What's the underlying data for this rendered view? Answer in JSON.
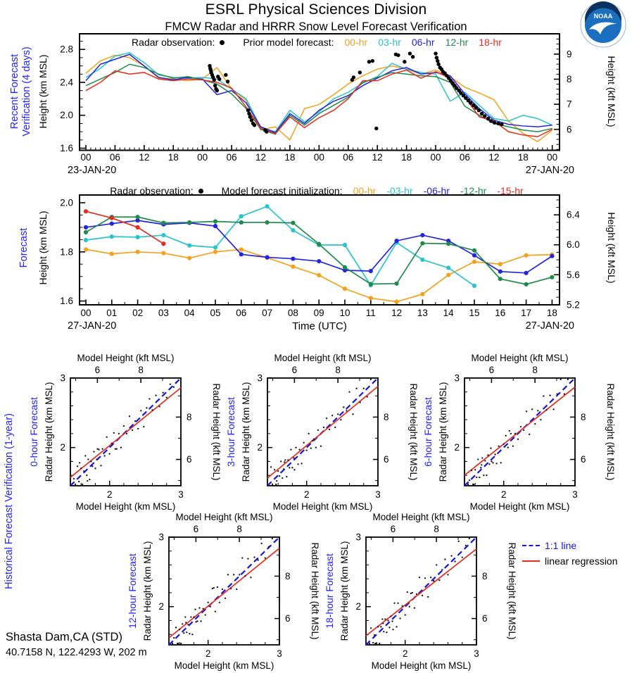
{
  "header": {
    "title": "ESRL Physical Sciences Division",
    "subtitle": "FMCW Radar and HRRR Snow Level Forecast Verification"
  },
  "noaa_logo": {
    "text": "NOAA"
  },
  "station": {
    "name": "Shasta Dam,CA (STD)",
    "coords": "40.7158 N, 122.4293 W, 202 m"
  },
  "legends": {
    "top": {
      "obs_label": "Radar observation:",
      "fc_label": "Prior model forecast:"
    },
    "mid": {
      "obs_label": "Radar observation:",
      "fc_label": "Model forecast initialization:"
    }
  },
  "scatter_common": {
    "section_label": "Historical Forecast Verification (1-year)",
    "top_axis_label": "Model Height (kft MSL)",
    "bottom_axis_label": "Model Height (km MSL)",
    "left_axis_label": "Radar Height (km MSL)",
    "right_axis_label": "Radar Height (kft MSL)",
    "km_ticks": [
      "2",
      "3"
    ],
    "kft_ticks": [
      "6",
      "8"
    ],
    "lim": [
      1.45,
      3.0
    ],
    "legend": [
      {
        "label": "1:1 line",
        "color": "#1414e0",
        "style": "dashed"
      },
      {
        "label": "linear regression",
        "color": "#e52a1e",
        "style": "solid"
      }
    ]
  },
  "chart_data": [
    {
      "id": "recent-verification",
      "type": "line",
      "section_label_1": "Recent Forecast",
      "section_label_2": "Verification (4 days)",
      "ylabel_left": "Height (km MSL)",
      "ylabel_right": "Height (kft MSL)",
      "x_date_left": "23-JAN-20",
      "x_date_right": "27-JAN-20",
      "x_labels": [
        "00",
        "06",
        "12",
        "18",
        "00",
        "06",
        "12",
        "18",
        "00",
        "06",
        "12",
        "18",
        "00",
        "06",
        "12",
        "18",
        "00"
      ],
      "y_ticks_left": [
        "1.6",
        "2.0",
        "2.4",
        "2.8"
      ],
      "y_ticks_right": [
        "6",
        "7",
        "8",
        "9"
      ],
      "xlim_hours": [
        0,
        96
      ],
      "ylim_km": [
        1.574,
        2.99
      ],
      "series": [
        {
          "label": "00-hr",
          "color": "#f5a11b",
          "step": 3,
          "values": [
            2.51,
            2.66,
            2.73,
            2.7,
            2.6,
            2.45,
            2.44,
            2.42,
            2.44,
            2.58,
            2.32,
            2.18,
            1.82,
            1.86,
            1.7,
            2.08,
            2.13,
            2.25,
            2.38,
            2.48,
            2.56,
            2.6,
            2.56,
            2.5,
            2.55,
            2.47,
            2.34,
            2.27,
            2.19,
            1.93,
            1.78,
            1.68,
            1.82
          ]
        },
        {
          "label": "03-hr",
          "color": "#27c3ce",
          "step": 3,
          "values": [
            2.46,
            2.57,
            2.72,
            2.76,
            2.64,
            2.49,
            2.46,
            2.45,
            2.46,
            2.44,
            2.32,
            2.2,
            1.85,
            1.8,
            2.06,
            1.92,
            2.04,
            2.2,
            2.28,
            2.39,
            2.47,
            2.63,
            2.56,
            2.52,
            2.5,
            2.17,
            2.28,
            2.12,
            1.96,
            1.93,
            2.0,
            1.96,
            1.88
          ]
        },
        {
          "label": "06-hr",
          "color": "#2323e0",
          "step": 3,
          "values": [
            2.42,
            2.62,
            2.68,
            2.74,
            2.6,
            2.46,
            2.43,
            2.46,
            2.44,
            2.25,
            2.3,
            2.15,
            1.86,
            1.79,
            2.02,
            1.9,
            2.06,
            2.17,
            2.24,
            2.36,
            2.45,
            2.54,
            2.58,
            2.5,
            2.52,
            2.48,
            2.26,
            2.08,
            1.94,
            1.89,
            1.87,
            1.86,
            1.88
          ]
        },
        {
          "label": "12-hr",
          "color": "#1f8a4c",
          "step": 3,
          "values": [
            2.36,
            2.44,
            2.52,
            2.62,
            2.58,
            2.5,
            2.45,
            2.47,
            2.43,
            2.38,
            2.26,
            2.08,
            1.83,
            1.77,
            2.0,
            1.88,
            2.02,
            2.12,
            2.22,
            2.4,
            2.46,
            2.52,
            2.5,
            2.48,
            2.47,
            2.4,
            2.11,
            2.0,
            1.9,
            1.86,
            1.82,
            1.8,
            1.84
          ]
        },
        {
          "label": "18-hr",
          "color": "#e52a1e",
          "step": 3,
          "values": [
            2.3,
            2.4,
            2.54,
            2.5,
            2.52,
            2.44,
            2.42,
            2.44,
            2.43,
            2.4,
            2.33,
            2.1,
            1.84,
            1.78,
            1.98,
            1.85,
            1.97,
            2.06,
            2.2,
            2.42,
            2.42,
            2.5,
            2.55,
            2.45,
            2.53,
            2.45,
            2.22,
            1.98,
            1.93,
            1.8,
            1.76,
            1.74,
            1.83
          ]
        }
      ],
      "observations": [
        25.5,
        2.6,
        25.6,
        2.57,
        25.7,
        2.55,
        25.8,
        2.52,
        26.0,
        2.49,
        26.2,
        2.46,
        26.4,
        2.43,
        26.6,
        2.36,
        26.8,
        2.32,
        27.0,
        2.3,
        27.2,
        2.47,
        27.5,
        2.44,
        28.8,
        2.49,
        29.2,
        2.41,
        33.4,
        2.06,
        33.6,
        2.02,
        33.8,
        1.98,
        34.1,
        1.94,
        34.4,
        1.9,
        34.7,
        1.88,
        36.9,
        1.82,
        37.2,
        1.8,
        54.8,
        2.43,
        55.1,
        2.46,
        56.4,
        2.52,
        58.3,
        2.65,
        59.0,
        2.66,
        59.8,
        1.84,
        63.8,
        2.74,
        64.3,
        2.73,
        65.6,
        2.65,
        66.7,
        2.75,
        67.3,
        2.71,
        72.0,
        2.75,
        72.2,
        2.7,
        72.4,
        2.66,
        72.6,
        2.62,
        72.9,
        2.58,
        73.2,
        2.56,
        73.5,
        2.53,
        73.9,
        2.51,
        74.3,
        2.48,
        74.7,
        2.45,
        75.1,
        2.42,
        75.5,
        2.39,
        75.9,
        2.36,
        76.3,
        2.33,
        76.8,
        2.3,
        77.2,
        2.27,
        77.7,
        2.24,
        78.2,
        2.21,
        78.7,
        2.18,
        79.2,
        2.15,
        79.8,
        2.12,
        80.3,
        2.09,
        80.9,
        2.06,
        81.5,
        2.02,
        82.1,
        1.99,
        82.8,
        1.96,
        83.4,
        1.93,
        84.1,
        1.91,
        84.9,
        1.9,
        85.6,
        1.89
      ]
    },
    {
      "id": "forecast",
      "type": "line",
      "section_label_1": "Forecast",
      "ylabel_left": "Height (km MSL)",
      "ylabel_right": "Height (kft MSL)",
      "xlabel": "Time (UTC)",
      "x_date_left": "27-JAN-20",
      "x_date_right": "27-JAN-20",
      "x_labels": [
        "00",
        "01",
        "02",
        "03",
        "04",
        "05",
        "06",
        "07",
        "08",
        "09",
        "10",
        "11",
        "12",
        "13",
        "14",
        "15",
        "16",
        "17",
        "18"
      ],
      "y_ticks_left": [
        "1.6",
        "1.8",
        "2.0"
      ],
      "y_ticks_right": [
        "5.2",
        "5.6",
        "6.0",
        "6.4"
      ],
      "xlim_hours": [
        0,
        18
      ],
      "ylim_km": [
        1.585,
        2.032
      ],
      "series": [
        {
          "label": "00-hr",
          "color": "#f5a11b",
          "step": 1,
          "values": [
            1.81,
            1.792,
            1.8,
            1.795,
            1.775,
            1.8,
            1.81,
            1.776,
            1.74,
            1.705,
            1.65,
            1.612,
            1.597,
            1.628,
            1.706,
            1.76,
            1.75,
            1.786,
            1.789
          ]
        },
        {
          "label": "-03-hr",
          "color": "#27c3ce",
          "step": 1,
          "values": [
            1.848,
            1.862,
            1.86,
            1.868,
            1.826,
            1.818,
            1.945,
            1.985,
            1.888,
            1.828,
            1.828,
            1.664,
            1.838,
            1.768,
            1.735,
            1.662
          ]
        },
        {
          "label": "-06-hr",
          "color": "#2323e0",
          "step": 1,
          "values": [
            1.9,
            1.915,
            1.928,
            1.912,
            1.918,
            1.905,
            1.79,
            1.778,
            1.772,
            1.762,
            1.725,
            1.722,
            1.845,
            1.868,
            1.845,
            1.786,
            1.72,
            1.714,
            1.783
          ]
        },
        {
          "label": "-12-hr",
          "color": "#1f8a4c",
          "step": 1,
          "values": [
            1.88,
            1.942,
            1.942,
            1.918,
            1.92,
            1.924,
            1.92,
            1.92,
            1.918,
            1.832,
            1.737,
            1.669,
            1.671,
            1.835,
            1.833,
            1.806,
            1.69,
            1.668,
            1.697
          ]
        },
        {
          "label": "-15-hr",
          "color": "#e52a1e",
          "step": 1,
          "values": [
            1.965,
            1.938,
            1.9,
            1.833
          ]
        }
      ],
      "observations": []
    },
    {
      "id": "scatter-0h",
      "type": "scatter",
      "title": "0-hour Forecast",
      "regression": [
        1.45,
        1.57,
        3.0,
        2.86
      ],
      "points": [
        1.5,
        1.55,
        1.52,
        1.47,
        1.55,
        1.73,
        1.57,
        1.51,
        1.6,
        1.7,
        1.62,
        1.47,
        1.64,
        1.66,
        1.66,
        1.88,
        1.68,
        1.6,
        1.7,
        1.83,
        1.72,
        1.54,
        1.74,
        1.8,
        1.76,
        1.73,
        1.78,
        1.94,
        1.8,
        1.7,
        1.82,
        1.83,
        1.85,
        1.97,
        1.88,
        1.74,
        1.9,
        1.98,
        1.93,
        1.88,
        1.96,
        2.15,
        2.0,
        1.91,
        2.03,
        2.06,
        2.06,
        2.21,
        2.1,
        1.98,
        2.13,
        2.2,
        2.16,
        2.0,
        2.2,
        2.31,
        2.24,
        2.2,
        2.28,
        2.45,
        2.32,
        2.25,
        2.36,
        2.38,
        2.4,
        2.27,
        2.44,
        2.53,
        2.48,
        2.3,
        2.52,
        2.57,
        2.56,
        2.7,
        2.6,
        2.54,
        2.65,
        2.75,
        2.7,
        2.59,
        2.75,
        2.79,
        2.8,
        2.72,
        2.85,
        2.91,
        2.9,
        2.87,
        1.58,
        1.78,
        1.69,
        1.52,
        1.83,
        1.98,
        2.08,
        1.98
      ]
    },
    {
      "id": "scatter-3h",
      "type": "scatter",
      "title": "3-hour Forecast",
      "regression": [
        1.45,
        1.56,
        3.0,
        2.88
      ],
      "points": [
        1.5,
        1.72,
        1.52,
        1.47,
        1.55,
        1.68,
        1.57,
        1.47,
        1.6,
        1.66,
        1.62,
        1.59,
        1.64,
        1.8,
        1.66,
        1.56,
        1.68,
        1.69,
        1.7,
        1.82,
        1.72,
        1.58,
        1.74,
        1.82,
        1.76,
        1.71,
        1.78,
        1.97,
        1.8,
        1.71,
        1.82,
        1.85,
        1.85,
        2.0,
        1.88,
        1.76,
        1.9,
        1.97,
        1.93,
        1.77,
        1.96,
        2.07,
        2.0,
        1.96,
        2.03,
        2.2,
        2.06,
        1.99,
        2.1,
        2.12,
        2.13,
        2.0,
        2.16,
        2.25,
        2.2,
        2.02,
        2.24,
        2.29,
        2.28,
        2.42,
        2.32,
        2.26,
        2.36,
        2.46,
        2.4,
        2.29,
        2.44,
        2.48,
        2.48,
        2.4,
        2.52,
        2.58,
        2.56,
        2.53,
        2.6,
        2.8,
        2.65,
        2.48,
        2.7,
        2.85,
        2.75,
        2.65,
        2.8,
        2.85,
        2.85,
        2.73,
        2.9,
        2.98,
        1.58,
        1.52,
        1.69,
        1.79,
        1.83,
        1.68,
        2.08,
        2.1
      ]
    },
    {
      "id": "scatter-6h",
      "type": "scatter",
      "title": "6-hour Forecast",
      "regression": [
        1.45,
        1.6,
        3.0,
        2.87
      ],
      "points": [
        1.5,
        1.47,
        1.52,
        1.53,
        1.55,
        1.67,
        1.57,
        1.47,
        1.6,
        1.68,
        1.62,
        1.57,
        1.64,
        1.83,
        1.66,
        1.57,
        1.68,
        1.71,
        1.7,
        1.85,
        1.72,
        1.6,
        1.74,
        1.81,
        1.76,
        1.6,
        1.78,
        1.89,
        1.8,
        1.76,
        1.82,
        1.99,
        1.85,
        1.78,
        1.88,
        1.9,
        1.9,
        1.77,
        1.93,
        2.02,
        1.96,
        1.78,
        2.0,
        2.05,
        2.03,
        2.17,
        2.06,
        2.0,
        2.1,
        2.2,
        2.13,
        2.02,
        2.16,
        2.2,
        2.2,
        2.12,
        2.24,
        2.3,
        2.28,
        2.25,
        2.32,
        2.52,
        2.36,
        2.19,
        2.4,
        2.55,
        2.44,
        2.34,
        2.48,
        2.53,
        2.52,
        2.4,
        2.56,
        2.74,
        2.6,
        2.54,
        2.65,
        2.75,
        2.7,
        2.55,
        2.75,
        2.77,
        2.8,
        2.98,
        2.85,
        2.77,
        2.9,
        2.98,
        1.58,
        1.47,
        1.69,
        1.75,
        1.83,
        1.8,
        2.08,
        2.24
      ]
    },
    {
      "id": "scatter-12h",
      "type": "scatter",
      "title": "12-hour Forecast",
      "regression": [
        1.45,
        1.55,
        3.0,
        2.84
      ],
      "points": [
        1.5,
        1.47,
        1.52,
        1.55,
        1.55,
        1.7,
        1.57,
        1.47,
        1.6,
        1.67,
        1.62,
        1.47,
        1.64,
        1.75,
        1.66,
        1.62,
        1.68,
        1.85,
        1.7,
        1.63,
        1.72,
        1.74,
        1.74,
        1.61,
        1.76,
        1.85,
        1.78,
        1.6,
        1.8,
        1.85,
        1.82,
        1.96,
        1.85,
        1.79,
        1.88,
        1.98,
        1.9,
        1.79,
        1.93,
        1.97,
        1.96,
        1.88,
        2.0,
        2.06,
        2.03,
        2.0,
        2.06,
        2.26,
        2.1,
        1.93,
        2.13,
        2.28,
        2.16,
        2.06,
        2.2,
        2.25,
        2.24,
        2.12,
        2.28,
        2.46,
        2.32,
        2.26,
        2.36,
        2.46,
        2.4,
        2.25,
        2.44,
        2.46,
        2.48,
        2.7,
        2.52,
        2.44,
        2.56,
        2.69,
        2.6,
        2.42,
        2.65,
        2.71,
        2.7,
        2.67,
        2.75,
        2.91,
        2.8,
        2.7,
        2.85,
        2.86,
        2.9,
        2.98,
        1.58,
        1.47,
        1.69,
        1.77,
        1.83,
        1.78,
        2.08,
        2.27
      ]
    },
    {
      "id": "scatter-18h",
      "type": "scatter",
      "title": "18-hour Forecast",
      "regression": [
        1.45,
        1.58,
        3.0,
        2.83
      ],
      "points": [
        1.5,
        1.47,
        1.52,
        1.69,
        1.55,
        1.48,
        1.57,
        1.59,
        1.6,
        1.47,
        1.62,
        1.71,
        1.64,
        1.47,
        1.66,
        1.71,
        1.68,
        1.82,
        1.7,
        1.64,
        1.72,
        1.82,
        1.74,
        1.63,
        1.76,
        1.8,
        1.78,
        1.7,
        1.8,
        1.86,
        1.82,
        1.79,
        1.85,
        2.05,
        1.88,
        1.71,
        1.9,
        2.05,
        1.93,
        1.83,
        1.96,
        2.01,
        2.0,
        1.88,
        2.03,
        2.21,
        2.06,
        2.0,
        2.1,
        2.2,
        2.13,
        1.98,
        2.16,
        2.18,
        2.2,
        2.42,
        2.24,
        2.16,
        2.28,
        2.41,
        2.32,
        2.14,
        2.36,
        2.42,
        2.4,
        2.37,
        2.44,
        2.6,
        2.48,
        2.38,
        2.52,
        2.53,
        2.56,
        2.68,
        2.6,
        2.46,
        2.65,
        2.73,
        2.7,
        2.65,
        2.75,
        2.94,
        2.8,
        2.71,
        2.85,
        2.88,
        2.9,
        2.98,
        1.58,
        1.47,
        1.69,
        1.76,
        1.83,
        1.67,
        2.08,
        2.19
      ]
    }
  ]
}
